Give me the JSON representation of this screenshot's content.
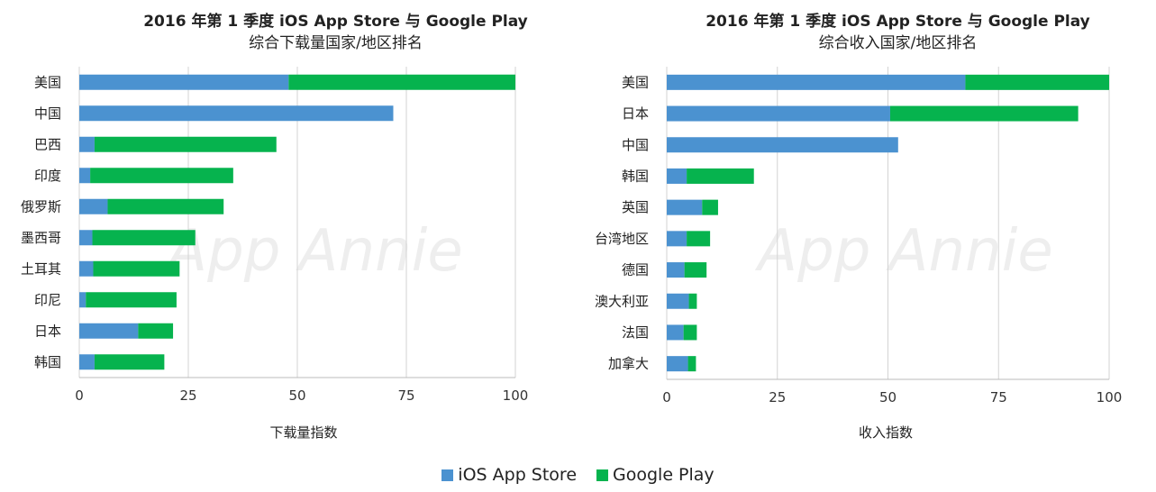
{
  "colors": {
    "ios": "#4b92d0",
    "google": "#06b34e",
    "grid": "#d3d3d3",
    "watermark": "#eeeeee"
  },
  "watermark": "App Annie",
  "legend": [
    {
      "label": "iOS App Store",
      "color": "#4b92d0"
    },
    {
      "label": "Google Play",
      "color": "#06b34e"
    }
  ],
  "chart_data": [
    {
      "type": "bar",
      "orientation": "horizontal",
      "stacked": true,
      "title": "2016 年第 1 季度 iOS App Store 与 Google Play",
      "subtitle": "综合下载量国家/地区排名",
      "xlabel": "下载量指数",
      "ylabel": "",
      "xlim": [
        0,
        100
      ],
      "xticks": [
        0,
        25,
        50,
        75,
        100
      ],
      "grid": true,
      "categories": [
        "美国",
        "中国",
        "巴西",
        "印度",
        "俄罗斯",
        "墨西哥",
        "土耳其",
        "印尼",
        "日本",
        "韩国"
      ],
      "series": [
        {
          "name": "iOS App Store",
          "values": [
            48,
            72,
            3.5,
            2.5,
            6.5,
            3,
            3.2,
            1.5,
            13.5,
            3.5
          ]
        },
        {
          "name": "Google Play",
          "values": [
            52,
            0,
            41.7,
            32.8,
            26.6,
            23.6,
            19.8,
            20.8,
            8,
            16
          ]
        }
      ]
    },
    {
      "type": "bar",
      "orientation": "horizontal",
      "stacked": true,
      "title": "2016 年第 1 季度 iOS App Store 与 Google Play",
      "subtitle": "综合收入国家/地区排名",
      "xlabel": "收入指数",
      "ylabel": "",
      "xlim": [
        0,
        100
      ],
      "xticks": [
        0,
        25,
        50,
        75,
        100
      ],
      "grid": true,
      "categories": [
        "美国",
        "日本",
        "中国",
        "韩国",
        "英国",
        "台湾地区",
        "德国",
        "澳大利亚",
        "法国",
        "加拿大"
      ],
      "series": [
        {
          "name": "iOS App Store",
          "values": [
            67.5,
            50.5,
            52.3,
            4.5,
            8,
            4.5,
            4,
            5,
            3.8,
            4.8
          ]
        },
        {
          "name": "Google Play",
          "values": [
            32.5,
            42.5,
            0,
            15.2,
            3.6,
            5.3,
            5,
            1.8,
            3,
            1.8
          ]
        }
      ]
    }
  ]
}
